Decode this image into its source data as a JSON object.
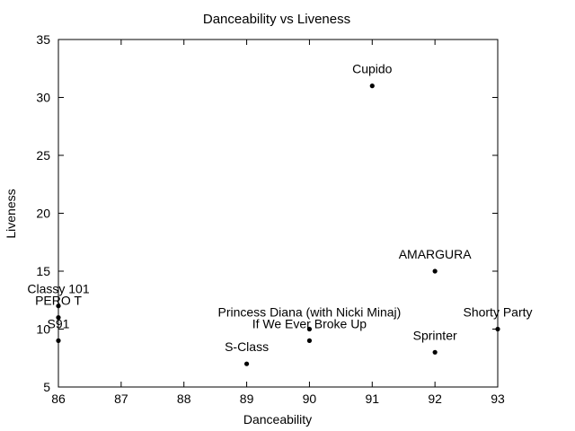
{
  "chart_data": {
    "type": "scatter",
    "title": "Danceability vs Liveness",
    "xlabel": "Danceability",
    "ylabel": "Liveness",
    "xlim": [
      86,
      93
    ],
    "ylim": [
      5,
      35
    ],
    "xticks": [
      86,
      87,
      88,
      89,
      90,
      91,
      92,
      93
    ],
    "yticks": [
      5,
      10,
      15,
      20,
      25,
      30,
      35
    ],
    "grid": false,
    "legend": "none",
    "point_color": "#000000",
    "points": [
      {
        "label": "Cupido",
        "x": 91,
        "y": 31
      },
      {
        "label": "AMARGURA",
        "x": 92,
        "y": 15
      },
      {
        "label": "Classy 101",
        "x": 86,
        "y": 12
      },
      {
        "label": "PERO T",
        "x": 86,
        "y": 11
      },
      {
        "label": "S91",
        "x": 86,
        "y": 9
      },
      {
        "label": "Princess Diana (with Nicki Minaj)",
        "x": 90,
        "y": 10
      },
      {
        "label": "If We Ever Broke Up",
        "x": 90,
        "y": 9
      },
      {
        "label": "Shorty Party",
        "x": 93,
        "y": 10
      },
      {
        "label": "Sprinter",
        "x": 92,
        "y": 8
      },
      {
        "label": "S-Class",
        "x": 89,
        "y": 7
      }
    ]
  }
}
